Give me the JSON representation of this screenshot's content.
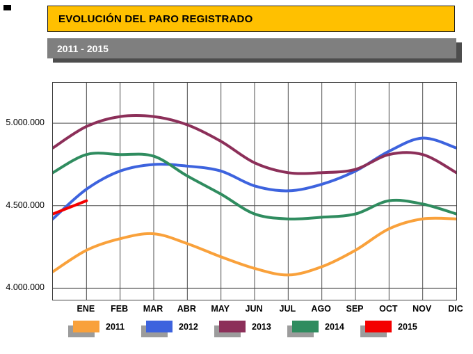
{
  "header": {
    "title": "EVOLUCIÓN DEL PARO REGISTRADO",
    "subtitle": "2011 - 2015"
  },
  "chart_data": {
    "type": "line",
    "title": "EVOLUCIÓN DEL PARO REGISTRADO",
    "subtitle": "2011 - 2015",
    "grid": true,
    "legend_position": "bottom",
    "x_categories": [
      "ENE",
      "FEB",
      "MAR",
      "ABR",
      "MAY",
      "JUN",
      "JUL",
      "AGO",
      "SEP",
      "OCT",
      "NOV",
      "DIC"
    ],
    "ylim": [
      3930000,
      5245000
    ],
    "y_ticks": [
      {
        "value": 4000000,
        "label": "4.000.000"
      },
      {
        "value": 4500000,
        "label": "4.500.000"
      },
      {
        "value": 5000000,
        "label": "5.000.000"
      }
    ],
    "series": [
      {
        "name": "2011",
        "color": "#F9A13B",
        "start_value": 4100000,
        "values": [
          4230000,
          4300000,
          4330000,
          4270000,
          4190000,
          4120000,
          4080000,
          4130000,
          4230000,
          4360000,
          4420000,
          4420000
        ]
      },
      {
        "name": "2012",
        "color": "#3D63DE",
        "start_value": 4420000,
        "values": [
          4600000,
          4710000,
          4750000,
          4740000,
          4710000,
          4620000,
          4590000,
          4630000,
          4710000,
          4830000,
          4910000,
          4850000
        ]
      },
      {
        "name": "2013",
        "color": "#8C2F59",
        "start_value": 4850000,
        "values": [
          4980000,
          5040000,
          5040000,
          4990000,
          4890000,
          4760000,
          4700000,
          4700000,
          4720000,
          4810000,
          4810000,
          4700000
        ]
      },
      {
        "name": "2014",
        "color": "#2F8C5F",
        "start_value": 4700000,
        "values": [
          4810000,
          4810000,
          4800000,
          4680000,
          4570000,
          4450000,
          4420000,
          4430000,
          4450000,
          4530000,
          4510000,
          4450000
        ]
      },
      {
        "name": "2015",
        "color": "#F40000",
        "start_value": 4450000,
        "values": [
          4530000
        ]
      }
    ]
  }
}
